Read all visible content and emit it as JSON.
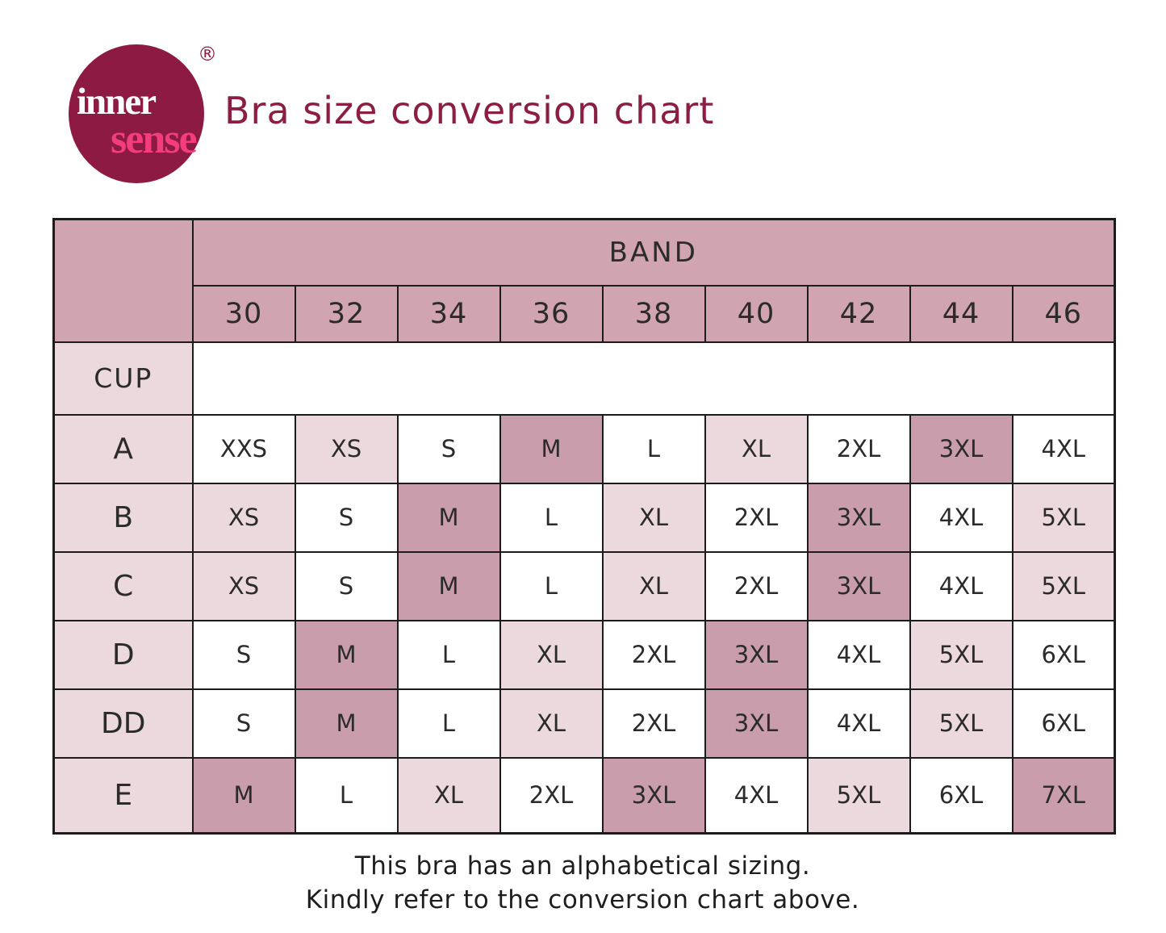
{
  "palette": {
    "title_maroon": "#8b1f41",
    "logo_circle": "#8c1a42",
    "logo_inner_text": "#ffffff",
    "logo_sense_text": "#f43d7b",
    "table_border": "#1c1c1c",
    "header_fill": "#d0a4b0",
    "dark_cell_fill": "#c99dab",
    "light_cell_fill": "#ecd9de",
    "white_cell_fill": "#ffffff",
    "body_text": "#2b2b2b"
  },
  "logo": {
    "word_top": "inner",
    "word_bottom": "sense",
    "registered_mark": "®"
  },
  "title": {
    "text": "Bra size conversion chart"
  },
  "chart_data": {
    "type": "table",
    "title": "Bra size conversion chart",
    "column_header_label": "BAND",
    "row_header_label": "CUP",
    "band_sizes": [
      "30",
      "32",
      "34",
      "36",
      "38",
      "40",
      "42",
      "44",
      "46"
    ],
    "rows": [
      {
        "cup": "A",
        "sizes": [
          "XXS",
          "XS",
          "S",
          "M",
          "L",
          "XL",
          "2XL",
          "3XL",
          "4XL"
        ],
        "shades": [
          "white",
          "light",
          "white",
          "dark",
          "white",
          "light",
          "white",
          "dark",
          "white"
        ]
      },
      {
        "cup": "B",
        "sizes": [
          "XS",
          "S",
          "M",
          "L",
          "XL",
          "2XL",
          "3XL",
          "4XL",
          "5XL"
        ],
        "shades": [
          "light",
          "white",
          "dark",
          "white",
          "light",
          "white",
          "dark",
          "white",
          "light"
        ]
      },
      {
        "cup": "C",
        "sizes": [
          "XS",
          "S",
          "M",
          "L",
          "XL",
          "2XL",
          "3XL",
          "4XL",
          "5XL"
        ],
        "shades": [
          "light",
          "white",
          "dark",
          "white",
          "light",
          "white",
          "dark",
          "white",
          "light"
        ]
      },
      {
        "cup": "D",
        "sizes": [
          "S",
          "M",
          "L",
          "XL",
          "2XL",
          "3XL",
          "4XL",
          "5XL",
          "6XL"
        ],
        "shades": [
          "white",
          "dark",
          "white",
          "light",
          "white",
          "dark",
          "white",
          "light",
          "white"
        ]
      },
      {
        "cup": "DD",
        "sizes": [
          "S",
          "M",
          "L",
          "XL",
          "2XL",
          "3XL",
          "4XL",
          "5XL",
          "6XL"
        ],
        "shades": [
          "white",
          "dark",
          "white",
          "light",
          "white",
          "dark",
          "white",
          "light",
          "white"
        ]
      },
      {
        "cup": "E",
        "sizes": [
          "M",
          "L",
          "XL",
          "2XL",
          "3XL",
          "4XL",
          "5XL",
          "6XL",
          "7XL"
        ],
        "shades": [
          "dark",
          "white",
          "light",
          "white",
          "dark",
          "white",
          "light",
          "white",
          "dark"
        ]
      }
    ]
  },
  "footer": {
    "line1": "This bra has an alphabetical sizing.",
    "line2": "Kindly refer to the conversion chart above."
  }
}
